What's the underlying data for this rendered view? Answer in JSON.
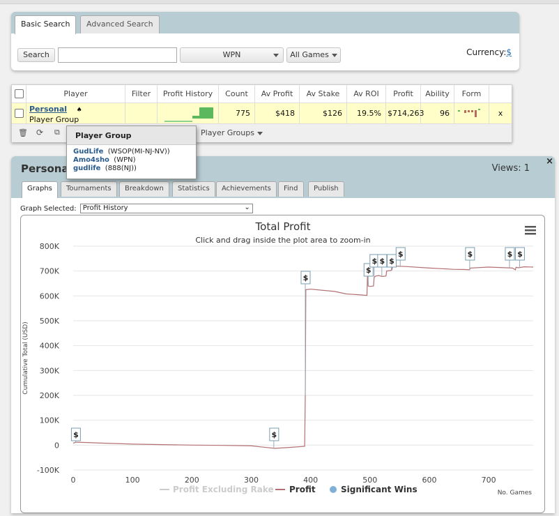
{
  "search": {
    "tabs": [
      "Basic Search",
      "Advanced Search"
    ],
    "search_button": "Search",
    "search_value": "",
    "network_select": "WPN",
    "games_select": "All Games",
    "currency_label": "Currency:",
    "currency_value": "$"
  },
  "players_table": {
    "headers": [
      "Player",
      "Filter",
      "Profit History",
      "Count",
      "Av Profit",
      "Av Stake",
      "Av ROI",
      "Profit",
      "Ability",
      "Form"
    ],
    "row": {
      "player_name": "Personal",
      "player_sub": "Player Group",
      "count": "775",
      "av_profit": "$418",
      "av_stake": "$126",
      "av_roi": "19.5%",
      "profit": "$714,263",
      "ability": "96",
      "remove": "x"
    },
    "player_groups_label": "Player Groups"
  },
  "popup": {
    "title": "Player Group",
    "members": [
      {
        "name": "GudLife",
        "network": "(WSOP(MI-NJ-NV))"
      },
      {
        "name": "Amo4sho",
        "network": "(WPN)"
      },
      {
        "name": "gudlife",
        "network": "(888(NJ))"
      }
    ]
  },
  "profile": {
    "title": "Personal",
    "views": "Views: 1",
    "close": "×",
    "tabs": [
      "Graphs",
      "Tournaments",
      "Breakdown",
      "Statistics",
      "Achievements",
      "Find",
      "Publish"
    ],
    "graph_selected_label": "Graph Selected:",
    "graph_selected_value": "Profit History"
  },
  "colors": {
    "header_bg": "#b7cdd3",
    "row_highlight": "#fffec8",
    "profit_line": "#b46f72",
    "sig_win": "#7fb0d8"
  },
  "chart_data": {
    "type": "line",
    "title": "Total Profit",
    "subtitle": "Click and drag inside the plot area to zoom-in",
    "ylabel": "Cumulative Total (USD)",
    "xlabel": "No. Games",
    "xlim": [
      0,
      775
    ],
    "ylim": [
      -100000,
      800000
    ],
    "x_ticks": [
      0,
      100,
      200,
      300,
      400,
      500,
      600,
      700
    ],
    "y_ticks": [
      -100000,
      0,
      100000,
      200000,
      300000,
      400000,
      500000,
      600000,
      700000,
      800000
    ],
    "y_tick_labels": [
      "-100K",
      "0",
      "100K",
      "200K",
      "300K",
      "400K",
      "500K",
      "600K",
      "700K",
      "800K"
    ],
    "series": [
      {
        "name": "Profit",
        "x": [
          0,
          5,
          50,
          100,
          150,
          200,
          250,
          300,
          340,
          360,
          390,
          391,
          392,
          400,
          440,
          460,
          480,
          495,
          496,
          497,
          500,
          506,
          507,
          510,
          515,
          520,
          527,
          528,
          535,
          537,
          538,
          560,
          600,
          640,
          660,
          668,
          669,
          700,
          740,
          745,
          746,
          750,
          760,
          775
        ],
        "y": [
          8000,
          12000,
          8000,
          4000,
          2000,
          0,
          -1000,
          -3000,
          -13000,
          -10000,
          -5000,
          200000,
          625000,
          627000,
          618000,
          608000,
          605000,
          602000,
          700000,
          640000,
          638000,
          640000,
          675000,
          680000,
          682000,
          678000,
          680000,
          700000,
          702000,
          705000,
          720000,
          718000,
          712000,
          707000,
          706000,
          705000,
          712000,
          716000,
          712000,
          705000,
          715000,
          713000,
          717000,
          716000
        ]
      },
      {
        "name": "Profit Excluding Rake",
        "x": [],
        "y": []
      }
    ],
    "significant_wins": {
      "name": "Significant Wins",
      "x": [
        4,
        338,
        391,
        497,
        507,
        520,
        536,
        551,
        668,
        735,
        752
      ],
      "label": "$"
    },
    "legend": [
      "Profit Excluding Rake",
      "Profit",
      "Significant Wins"
    ],
    "legend_position": "bottom-center",
    "grid": true
  }
}
